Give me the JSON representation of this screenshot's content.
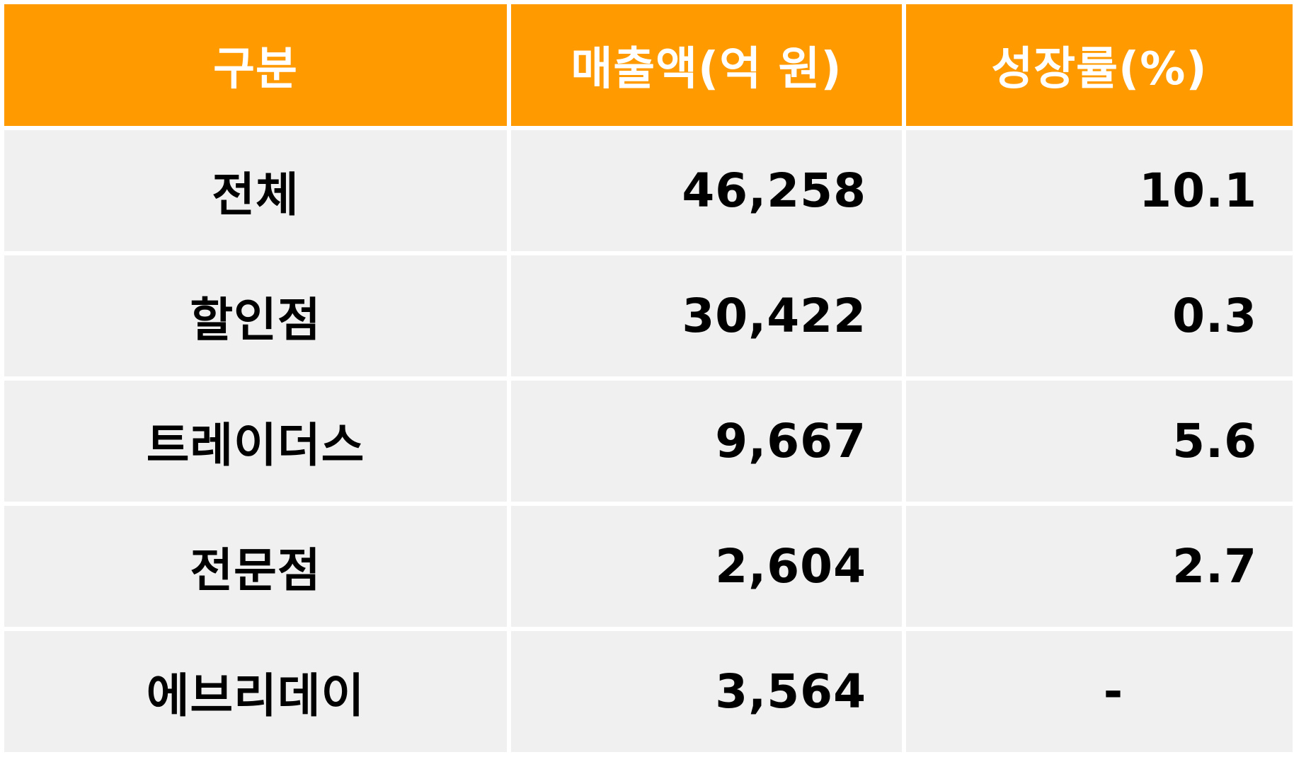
{
  "table": {
    "header": [
      "구분",
      "매출액(억 원)",
      "성장률(%)"
    ],
    "rows": [
      {
        "label": "전체",
        "sales": "46,258",
        "growth": "10.1"
      },
      {
        "label": "할인점",
        "sales": "30,422",
        "growth": "0.3"
      },
      {
        "label": "트레이더스",
        "sales": "9,667",
        "growth": "5.6"
      },
      {
        "label": "전문점",
        "sales": "2,604",
        "growth": "2.7"
      },
      {
        "label": "에브리데이",
        "sales": "3,564",
        "growth": "-"
      }
    ]
  },
  "colors": {
    "header_bg": "#FF9A00",
    "header_text": "#FFFFFF",
    "row_bg": "#F0F0F0",
    "row_text": "#000000"
  }
}
